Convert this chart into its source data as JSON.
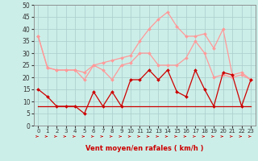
{
  "xlabel": "Vent moyen/en rafales ( km/h )",
  "x": [
    0,
    1,
    2,
    3,
    4,
    5,
    6,
    7,
    8,
    9,
    10,
    11,
    12,
    13,
    14,
    15,
    16,
    17,
    18,
    19,
    20,
    21,
    22,
    23
  ],
  "light_pink": "#ff9999",
  "dark_red": "#cc0000",
  "bg_color": "#cceee8",
  "grid_color": "#aacccc",
  "series_rafales": [
    37,
    24,
    23,
    23,
    23,
    22,
    25,
    26,
    27,
    28,
    29,
    35,
    40,
    44,
    47,
    41,
    37,
    37,
    38,
    32,
    40,
    21,
    22,
    19
  ],
  "series_moyen": [
    37,
    24,
    23,
    23,
    23,
    19,
    25,
    23,
    19,
    25,
    26,
    30,
    30,
    25,
    25,
    25,
    28,
    35,
    30,
    20,
    21,
    20,
    21,
    19
  ],
  "series_inst": [
    15,
    12,
    8,
    8,
    8,
    5,
    14,
    8,
    14,
    8,
    19,
    19,
    23,
    19,
    23,
    14,
    12,
    23,
    15,
    8,
    22,
    21,
    8,
    19
  ],
  "series_flat": [
    8,
    8,
    8,
    8,
    8,
    8,
    8,
    8,
    8,
    8,
    8,
    8,
    8,
    8,
    8,
    8,
    8,
    8,
    8,
    8,
    8,
    8,
    8,
    8
  ],
  "ylim": [
    0,
    50
  ],
  "yticks": [
    0,
    5,
    10,
    15,
    20,
    25,
    30,
    35,
    40,
    45,
    50
  ],
  "xlim": [
    -0.5,
    23.5
  ],
  "xlabel_fontsize": 6.0,
  "tick_fontsize_x": 5.0,
  "tick_fontsize_y": 5.5
}
